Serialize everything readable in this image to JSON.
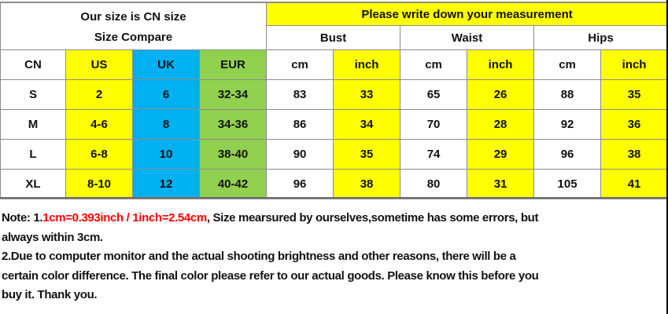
{
  "header": {
    "left_line1": "Our size is CN size",
    "left_line2": "Size Compare",
    "right_title": "Please write down your measurement",
    "groups": [
      "Bust",
      "Waist",
      "Hips"
    ]
  },
  "columns": [
    "CN",
    "US",
    "UK",
    "EUR",
    "cm",
    "inch",
    "cm",
    "inch",
    "cm",
    "inch"
  ],
  "rows": [
    [
      "S",
      "2",
      "6",
      "32-34",
      "83",
      "33",
      "65",
      "26",
      "88",
      "35"
    ],
    [
      "M",
      "4-6",
      "8",
      "34-36",
      "86",
      "34",
      "70",
      "28",
      "92",
      "36"
    ],
    [
      "L",
      "6-8",
      "10",
      "38-40",
      "90",
      "35",
      "74",
      "29",
      "96",
      "38"
    ],
    [
      "XL",
      "8-10",
      "12",
      "40-42",
      "96",
      "38",
      "80",
      "31",
      "105",
      "41"
    ]
  ],
  "notes": {
    "line1_prefix": "Note: 1.",
    "line1_red": "1cm=0.393inch / 1inch=2.54cm",
    "line1_suffix": ", Size mearsured by ourselves,sometime has some errors, but",
    "line2": "always within 3cm.",
    "line3": "2.Due to computer monitor and the actual shooting brightness and other reasons, there will be a",
    "line4": "certain color difference. The final color please refer to our actual goods. Please know this before you",
    "line5": "buy it. Thank you."
  },
  "colors": {
    "yellow": "#ffff00",
    "blue": "#00b0f0",
    "green": "#92d050",
    "note_red": "#ff0000"
  }
}
